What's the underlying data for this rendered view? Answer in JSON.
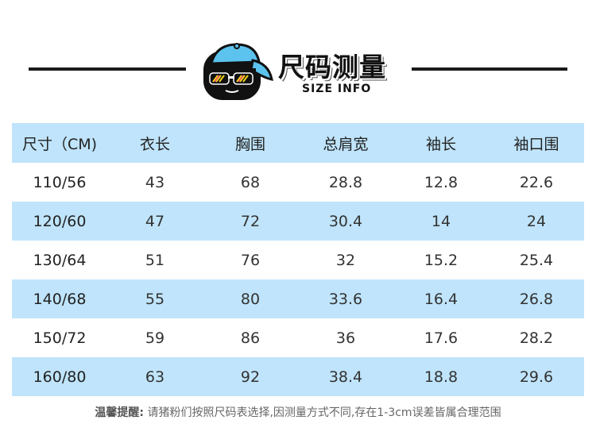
{
  "header": {
    "title_cn": "尺码测量",
    "title_en": "SIZE INFO"
  },
  "table": {
    "columns": [
      "尺寸（CM)",
      "衣长",
      "胸围",
      "总肩宽",
      "袖长",
      "袖口围"
    ],
    "rows": [
      [
        "110/56",
        "43",
        "68",
        "28.8",
        "12.8",
        "22.6"
      ],
      [
        "120/60",
        "47",
        "72",
        "30.4",
        "14",
        "24"
      ],
      [
        "130/64",
        "51",
        "76",
        "32",
        "15.2",
        "25.4"
      ],
      [
        "140/68",
        "55",
        "80",
        "33.6",
        "16.4",
        "26.8"
      ],
      [
        "150/72",
        "59",
        "86",
        "36",
        "17.6",
        "28.2"
      ],
      [
        "160/80",
        "63",
        "92",
        "38.4",
        "18.8",
        "29.6"
      ]
    ]
  },
  "note": {
    "label": "温馨提醒:",
    "text": "请猪粉们按照尺码表选择,因测量方式不同,存在1-3cm误差皆属合理范围"
  },
  "colors": {
    "header_row": "#bfe4fb",
    "stripe": "#bfe4fb",
    "rule": "#1a1a1a",
    "cap": "#5cc3ee"
  },
  "icons": {
    "mascot": "cartoon-character-with-cap-and-sunglasses"
  }
}
